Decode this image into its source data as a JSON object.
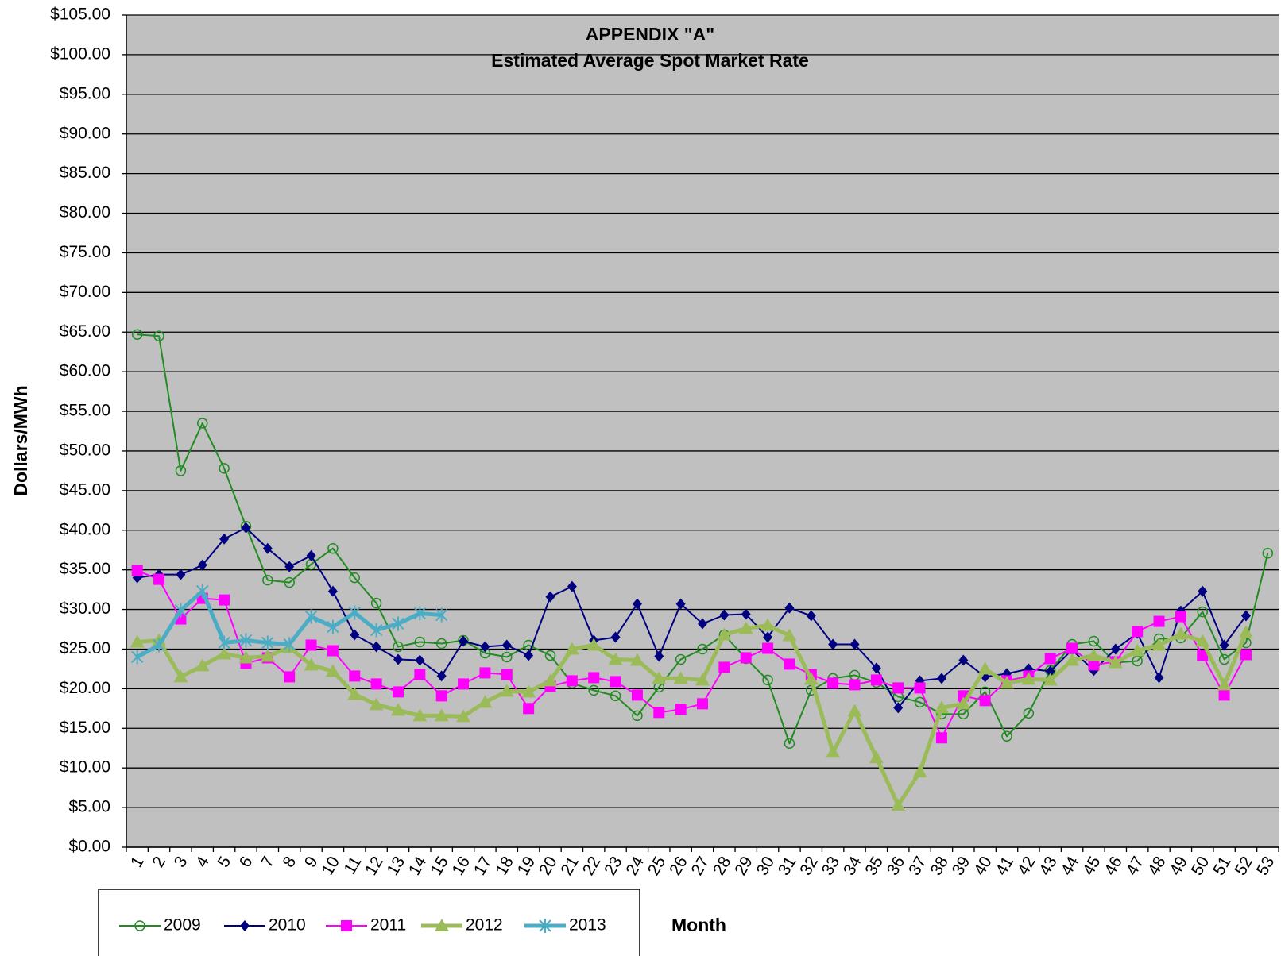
{
  "chart_data": {
    "type": "line",
    "title": "APPENDIX \"A\"",
    "subtitle": "Estimated Average Spot Market Rate",
    "y_label": "Dollars/MWh",
    "x_label": "Month",
    "categories": [
      "1",
      "2",
      "3",
      "4",
      "5",
      "6",
      "7",
      "8",
      "9",
      "10",
      "11",
      "12",
      "13",
      "14",
      "15",
      "16",
      "17",
      "18",
      "19",
      "20",
      "21",
      "22",
      "23",
      "24",
      "25",
      "26",
      "27",
      "28",
      "29",
      "30",
      "31",
      "32",
      "33",
      "34",
      "35",
      "36",
      "37",
      "38",
      "39",
      "40",
      "41",
      "42",
      "43",
      "44",
      "45",
      "46",
      "47",
      "48",
      "49",
      "50",
      "51",
      "52",
      "53"
    ],
    "ylim": [
      0,
      105
    ],
    "yticks": [
      {
        "value": 0,
        "label": "$0.00"
      },
      {
        "value": 5,
        "label": "$5.00"
      },
      {
        "value": 10,
        "label": "$10.00"
      },
      {
        "value": 15,
        "label": "$15.00"
      },
      {
        "value": 20,
        "label": "$20.00"
      },
      {
        "value": 25,
        "label": "$25.00"
      },
      {
        "value": 30,
        "label": "$30.00"
      },
      {
        "value": 35,
        "label": "$35.00"
      },
      {
        "value": 40,
        "label": "$40.00"
      },
      {
        "value": 45,
        "label": "$45.00"
      },
      {
        "value": 50,
        "label": "$50.00"
      },
      {
        "value": 55,
        "label": "$55.00"
      },
      {
        "value": 60,
        "label": "$60.00"
      },
      {
        "value": 65,
        "label": "$65.00"
      },
      {
        "value": 70,
        "label": "$70.00"
      },
      {
        "value": 75,
        "label": "$75.00"
      },
      {
        "value": 80,
        "label": "$80.00"
      },
      {
        "value": 85,
        "label": "$85.00"
      },
      {
        "value": 90,
        "label": "$90.00"
      },
      {
        "value": 95,
        "label": "$95.00"
      },
      {
        "value": 100,
        "label": "$100.00"
      },
      {
        "value": 105,
        "label": "$105.00"
      }
    ],
    "grid": true,
    "legend": "bottom-left",
    "series": [
      {
        "name": "2009",
        "color": "#228b22",
        "marker": "circle",
        "values": [
          64.7,
          64.5,
          47.5,
          53.5,
          47.8,
          40.5,
          33.7,
          33.4,
          35.7,
          37.7,
          34.0,
          30.8,
          25.3,
          25.9,
          25.7,
          26.1,
          24.5,
          24.0,
          25.5,
          24.2,
          20.7,
          19.8,
          19.1,
          16.6,
          20.2,
          23.7,
          25.0,
          26.8,
          23.8,
          21.1,
          13.1,
          19.8,
          21.3,
          21.7,
          20.8,
          19.0,
          18.3,
          16.8,
          16.8,
          19.6,
          14.0,
          16.9,
          22.3,
          25.6,
          26.0,
          23.3,
          23.5,
          26.3,
          26.4,
          29.7,
          23.7,
          25.8,
          37.1
        ]
      },
      {
        "name": "2010",
        "color": "#000080",
        "marker": "diamond",
        "values": [
          34.0,
          34.4,
          34.4,
          35.6,
          38.9,
          40.3,
          37.7,
          35.4,
          36.8,
          32.3,
          26.8,
          25.3,
          23.7,
          23.6,
          21.6,
          26.0,
          25.3,
          25.5,
          24.2,
          31.6,
          32.9,
          26.1,
          26.5,
          30.7,
          24.1,
          30.7,
          28.2,
          29.3,
          29.4,
          26.5,
          30.2,
          29.2,
          25.6,
          25.6,
          22.6,
          17.6,
          21.0,
          21.3,
          23.6,
          21.5,
          21.9,
          22.5,
          22.2,
          24.9,
          22.3,
          25.0,
          27.0,
          21.4,
          29.8,
          32.3,
          25.5,
          29.2,
          null
        ]
      },
      {
        "name": "2011",
        "color": "#ff00ff",
        "marker": "square",
        "values": [
          34.9,
          33.8,
          28.8,
          31.4,
          31.2,
          23.2,
          23.9,
          21.5,
          25.5,
          24.8,
          21.6,
          20.6,
          19.6,
          21.8,
          19.1,
          20.6,
          22.0,
          21.8,
          17.5,
          20.3,
          21.0,
          21.4,
          20.9,
          19.2,
          17.0,
          17.4,
          18.1,
          22.7,
          23.9,
          25.1,
          23.1,
          21.8,
          20.7,
          20.5,
          21.1,
          20.1,
          20.1,
          13.8,
          19.1,
          18.5,
          21.0,
          21.6,
          23.8,
          25.1,
          23.0,
          23.4,
          27.2,
          28.5,
          29.1,
          24.2,
          19.2,
          24.3,
          null
        ]
      },
      {
        "name": "2012",
        "color": "#9bbb59",
        "marker": "triangle",
        "values": [
          25.9,
          26.1,
          21.5,
          22.9,
          24.4,
          23.9,
          24.1,
          25.2,
          23.0,
          22.2,
          19.3,
          18.0,
          17.3,
          16.6,
          16.6,
          16.5,
          18.3,
          19.7,
          19.6,
          21.0,
          25.0,
          25.5,
          23.7,
          23.6,
          21.3,
          21.3,
          21.1,
          26.8,
          27.6,
          28.0,
          26.7,
          21.2,
          12.0,
          17.2,
          11.3,
          5.3,
          9.5,
          17.6,
          18.1,
          22.5,
          20.7,
          21.2,
          21.1,
          23.6,
          24.2,
          23.3,
          24.8,
          25.5,
          26.9,
          26.0,
          20.5,
          27.1,
          null
        ]
      },
      {
        "name": "2013",
        "color": "#4bacc6",
        "marker": "star",
        "values": [
          24.0,
          25.5,
          29.9,
          32.3,
          25.8,
          26.1,
          25.8,
          25.6,
          29.1,
          27.8,
          29.6,
          27.4,
          28.2,
          29.5,
          29.3,
          null,
          null,
          null,
          null,
          null,
          null,
          null,
          null,
          null,
          null,
          null,
          null,
          null,
          null,
          null,
          null,
          null,
          null,
          null,
          null,
          null,
          null,
          null,
          null,
          null,
          null,
          null,
          null,
          null,
          null,
          null,
          null,
          null,
          null,
          null,
          null,
          null,
          null
        ]
      }
    ]
  }
}
